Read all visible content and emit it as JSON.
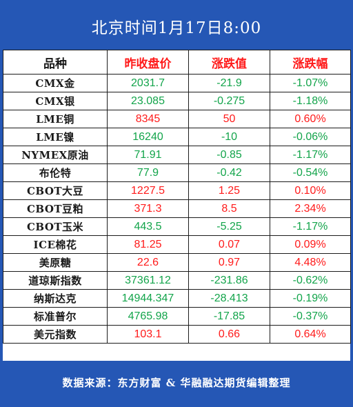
{
  "title": "北京时间1月17日8:00",
  "headers": {
    "name": "品种",
    "prev_close": "昨收盘价",
    "change": "涨跌值",
    "change_pct": "涨跌幅"
  },
  "colors": {
    "brand_blue": "#2557b5",
    "up_red": "#ff1a1a",
    "down_green": "#12a44a"
  },
  "rows": [
    {
      "name": "CMX金",
      "prev_close": "2031.7",
      "change": "-21.9",
      "change_pct": "-1.07%",
      "trend": "down"
    },
    {
      "name": "CMX银",
      "prev_close": "23.085",
      "change": "-0.275",
      "change_pct": "-1.18%",
      "trend": "down"
    },
    {
      "name": "LME铜",
      "prev_close": "8345",
      "change": "50",
      "change_pct": "0.60%",
      "trend": "up"
    },
    {
      "name": "LME镍",
      "prev_close": "16240",
      "change": "-10",
      "change_pct": "-0.06%",
      "trend": "down"
    },
    {
      "name": "NYMEX原油",
      "prev_close": "71.91",
      "change": "-0.85",
      "change_pct": "-1.17%",
      "trend": "down"
    },
    {
      "name": "布伦特",
      "prev_close": "77.9",
      "change": "-0.42",
      "change_pct": "-0.54%",
      "trend": "down"
    },
    {
      "name": "CBOT大豆",
      "prev_close": "1227.5",
      "change": "1.25",
      "change_pct": "0.10%",
      "trend": "up"
    },
    {
      "name": "CBOT豆粕",
      "prev_close": "371.3",
      "change": "8.5",
      "change_pct": "2.34%",
      "trend": "up"
    },
    {
      "name": "CBOT玉米",
      "prev_close": "443.5",
      "change": "-5.25",
      "change_pct": "-1.17%",
      "trend": "down"
    },
    {
      "name": "ICE棉花",
      "prev_close": "81.25",
      "change": "0.07",
      "change_pct": "0.09%",
      "trend": "up"
    },
    {
      "name": "美原糖",
      "prev_close": "22.6",
      "change": "0.97",
      "change_pct": "4.48%",
      "trend": "up"
    },
    {
      "name": "道琼斯指数",
      "prev_close": "37361.12",
      "change": "-231.86",
      "change_pct": "-0.62%",
      "trend": "down"
    },
    {
      "name": "纳斯达克",
      "prev_close": "14944.347",
      "change": "-28.413",
      "change_pct": "-0.19%",
      "trend": "down"
    },
    {
      "name": "标准普尔",
      "prev_close": "4765.98",
      "change": "-17.85",
      "change_pct": "-0.37%",
      "trend": "down"
    },
    {
      "name": "美元指数",
      "prev_close": "103.1",
      "change": "0.66",
      "change_pct": "0.64%",
      "trend": "up"
    }
  ],
  "footer": "数据来源：东方财富 & 华融融达期货编辑整理"
}
